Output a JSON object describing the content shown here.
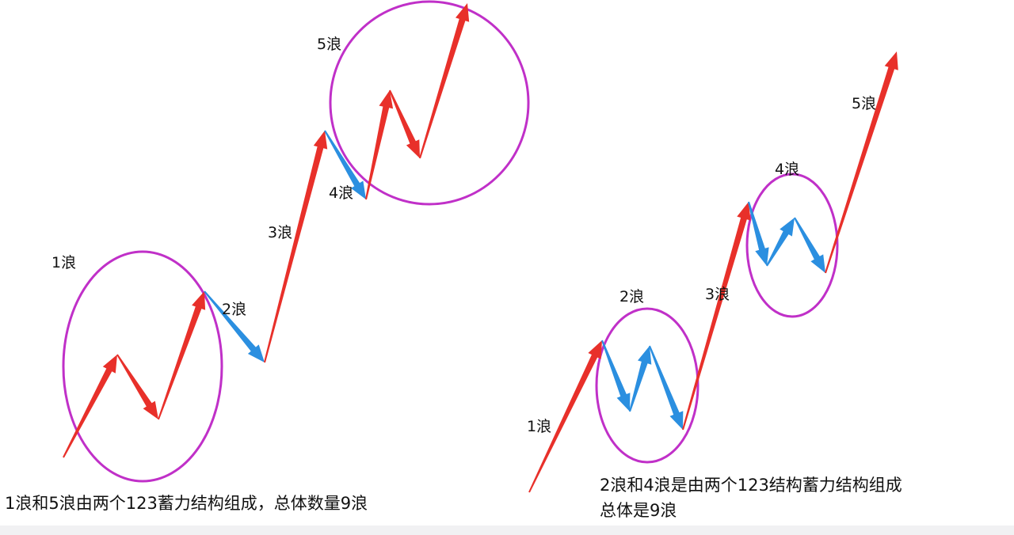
{
  "colors": {
    "impulse": "#e8302a",
    "correction": "#2b8fe0",
    "circle": "#c030c8"
  },
  "left_diagram": {
    "labels": [
      "1浪",
      "2浪",
      "3浪",
      "4浪",
      "5浪"
    ],
    "caption": "1浪和5浪由两个123蓄力结构组成，总体数量9浪"
  },
  "right_diagram": {
    "labels": [
      "1浪",
      "2浪",
      "3浪",
      "4浪",
      "5浪"
    ],
    "caption_line1": "2浪和4浪是由两个123结构蓄力结构组成",
    "caption_line2": "总体是9浪"
  }
}
